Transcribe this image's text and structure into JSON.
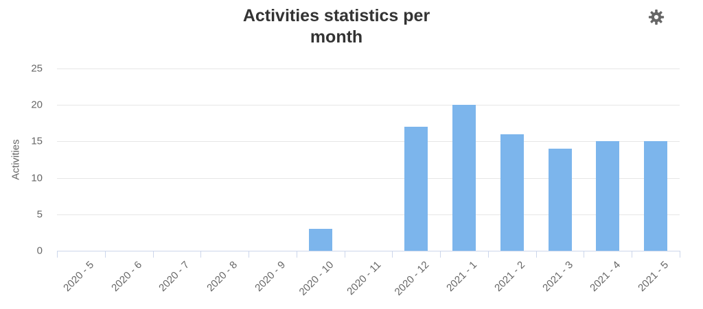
{
  "chart_data": {
    "type": "bar",
    "title": "Activities statistics per month",
    "ylabel": "Activities",
    "xlabel": "",
    "categories": [
      "2020 - 5",
      "2020 - 6",
      "2020 - 7",
      "2020 - 8",
      "2020 - 9",
      "2020 - 10",
      "2020 - 11",
      "2020 - 12",
      "2021 - 1",
      "2021 - 2",
      "2021 - 3",
      "2021 - 4",
      "2021 - 5"
    ],
    "values": [
      0,
      0,
      0,
      0,
      0,
      3,
      0,
      17,
      20,
      16,
      14,
      15,
      15
    ],
    "ylim": [
      0,
      25
    ],
    "yticks": [
      0,
      5,
      10,
      15,
      20,
      25
    ],
    "grid": true,
    "legend": "none",
    "colors": {
      "bar": "#7cb5ec",
      "grid": "#e6e6e6",
      "axis_line": "#ccd6eb",
      "tick_label": "#666666",
      "axis_title": "#666666",
      "title": "#333333",
      "icon": "#666666"
    }
  },
  "toolbar": {
    "settings_icon": "gear"
  }
}
